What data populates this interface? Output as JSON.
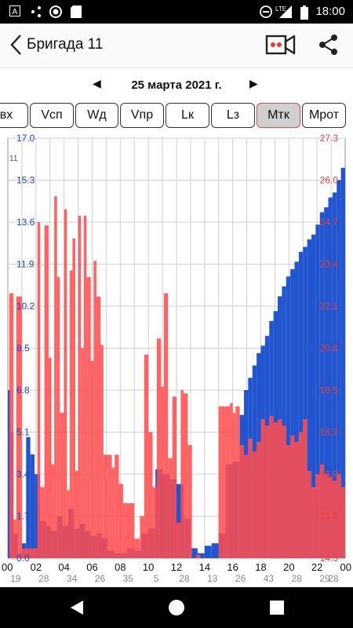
{
  "status": {
    "time": "18:00",
    "network": "LTE",
    "left_icons": [
      "a-notification-icon",
      "share-network-icon",
      "record-icon",
      "sd-card-icon"
    ]
  },
  "appbar": {
    "title": "Бригада 11",
    "back_icon": "chevron-left-icon",
    "camera_icon": "video-camera-icon",
    "share_icon": "share-icon"
  },
  "date": {
    "label": "25 марта 2021 г.",
    "prev_icon": "triangle-left-icon",
    "next_icon": "triangle-right-icon"
  },
  "tabs": [
    {
      "label": "вх"
    },
    {
      "label": "Vсп"
    },
    {
      "label": "Wд"
    },
    {
      "label": "Vпр"
    },
    {
      "label": "Lк"
    },
    {
      "label": "Lз"
    },
    {
      "label": "Mтк",
      "active": true
    },
    {
      "label": "Mрот"
    }
  ],
  "chart_data": {
    "type": "bar",
    "corner_label": "11",
    "grid": true,
    "left_axis": {
      "color": "#1f47c7",
      "ticks": [
        "0.0",
        "1.7",
        "3.4",
        "5.1",
        "6.8",
        "8.5",
        "10.2",
        "11.9",
        "13.6",
        "15.3",
        "17.0"
      ],
      "ylim": [
        0,
        17.0
      ]
    },
    "right_axis": {
      "color": "#e8403c",
      "ticks": [
        "14.3",
        "15.6",
        "16.9",
        "18.2",
        "19.5",
        "20.8",
        "22.1",
        "23.4",
        "24.7",
        "26.0",
        "27.3"
      ],
      "ylim": [
        14.3,
        27.3
      ]
    },
    "x_hours": [
      "00",
      "02",
      "04",
      "06",
      "08",
      "10",
      "12",
      "14",
      "16",
      "18",
      "20",
      "22",
      "00"
    ],
    "x_minutes": [
      "19",
      "28",
      "34",
      "26",
      "35",
      "5",
      "28",
      "13",
      "26",
      "43",
      "28",
      "29",
      "28"
    ],
    "series": [
      {
        "color": "#2255d0",
        "axis": "left",
        "x": [
          0.0,
          0.2,
          0.4,
          0.7,
          1.0,
          1.3,
          1.6,
          1.9,
          2.3,
          2.7,
          3.1,
          3.5,
          3.9,
          4.3,
          4.7,
          5.1,
          5.5,
          5.9,
          6.3,
          6.7,
          7.1,
          7.6,
          8.0,
          8.5,
          9.0,
          9.5,
          10.0,
          10.5,
          11.0,
          11.5,
          12.0,
          12.5,
          13.0,
          13.5,
          14.0,
          14.5,
          15.0,
          15.5,
          16.0,
          16.5,
          16.8,
          17.1,
          17.4,
          17.7,
          18.0,
          18.3,
          18.6,
          18.9,
          19.2,
          19.5,
          19.8,
          20.1,
          20.4,
          20.7,
          21.0,
          21.3,
          21.6,
          21.9,
          22.2,
          22.5,
          22.8,
          23.1,
          23.4,
          23.7
        ],
        "values": [
          6.8,
          5.1,
          1.0,
          0.2,
          0.6,
          4.9,
          4.2,
          3.4,
          1.5,
          1.3,
          1.1,
          1.7,
          1.3,
          2.0,
          1.2,
          1.4,
          1.1,
          0.9,
          1.0,
          0.8,
          0.3,
          0.2,
          0.2,
          0.4,
          0.3,
          1.0,
          1.2,
          3.6,
          3.4,
          3.2,
          3.0,
          1.6,
          0.4,
          0.2,
          0.5,
          0.6,
          1.0,
          3.8,
          3.9,
          5.8,
          6.8,
          7.3,
          7.8,
          8.3,
          8.6,
          9.0,
          9.6,
          10.0,
          10.6,
          11.0,
          11.4,
          11.7,
          12.0,
          12.4,
          12.6,
          12.9,
          13.1,
          13.5,
          14.0,
          14.2,
          14.6,
          14.8,
          15.3,
          15.8
        ]
      },
      {
        "color": "#ff4d4d",
        "axis": "right",
        "x": [
          0.1,
          0.4,
          0.6,
          1.0,
          2.1,
          2.3,
          2.6,
          2.9,
          3.1,
          3.3,
          3.5,
          3.7,
          4.0,
          4.2,
          4.4,
          4.6,
          4.8,
          5.0,
          5.2,
          5.4,
          5.6,
          5.9,
          6.1,
          6.3,
          6.6,
          6.8,
          7.1,
          7.4,
          7.6,
          7.9,
          8.2,
          9.0,
          9.4,
          9.7,
          10.0,
          10.3,
          10.6,
          10.9,
          11.1,
          11.4,
          11.7,
          12.0,
          12.3,
          12.5,
          12.8,
          13.1,
          13.4,
          13.7,
          14.1,
          14.5,
          15.0,
          15.2,
          15.5,
          15.8,
          16.0,
          16.2,
          16.5,
          16.8,
          17.1,
          17.4,
          17.7,
          18.0,
          18.3,
          18.6,
          18.9,
          19.2,
          19.5,
          19.8,
          20.1,
          20.4,
          20.7,
          21.0,
          21.3,
          21.6,
          21.9,
          22.2,
          22.5,
          22.8,
          23.1,
          23.4,
          23.7
        ],
        "values": [
          22.5,
          15.5,
          22.4,
          14.6,
          24.7,
          16.5,
          24.6,
          20.5,
          17.2,
          25.5,
          23.0,
          18.8,
          25.1,
          16.4,
          23.2,
          24.2,
          17.0,
          24.9,
          20.8,
          24.9,
          23.0,
          20.4,
          23.5,
          22.4,
          20.9,
          17.5,
          17.5,
          17.1,
          17.5,
          16.6,
          16.0,
          14.9,
          15.6,
          20.6,
          18.2,
          16.5,
          21.1,
          19.6,
          22.5,
          17.4,
          19.3,
          15.4,
          19.5,
          19.4,
          17.8,
          14.3,
          14.4,
          14.3,
          14.3,
          14.3,
          19.0,
          19.0,
          19.0,
          19.1,
          18.8,
          19.0,
          17.8,
          17.5,
          18.0,
          17.6,
          17.9,
          18.6,
          18.4,
          18.7,
          18.5,
          18.6,
          18.4,
          17.8,
          18.1,
          17.9,
          18.2,
          18.6,
          17.0,
          16.5,
          16.9,
          17.2,
          16.9,
          16.8,
          16.7,
          16.9,
          16.5
        ]
      }
    ]
  }
}
